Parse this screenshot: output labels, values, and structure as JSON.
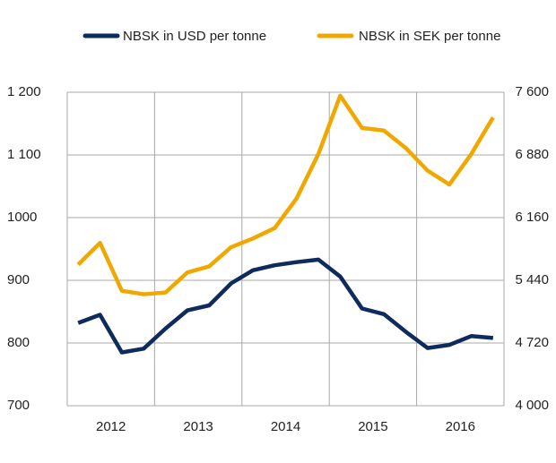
{
  "chart_data": {
    "type": "line",
    "x": [
      2012.125,
      2012.375,
      2012.625,
      2012.875,
      2013.125,
      2013.375,
      2013.625,
      2013.875,
      2014.125,
      2014.375,
      2014.625,
      2014.875,
      2015.125,
      2015.375,
      2015.625,
      2015.875,
      2016.125,
      2016.375,
      2016.625,
      2016.875
    ],
    "xlim": [
      2012,
      2017
    ],
    "xticks": [
      2012,
      2013,
      2014,
      2015,
      2016
    ],
    "series": [
      {
        "name": "NBSK in USD per tonne",
        "color": "#0f2a5c",
        "values": [
          832,
          845,
          785,
          791,
          823,
          852,
          860,
          895,
          916,
          924,
          929,
          933,
          906,
          855,
          846,
          818,
          792,
          797,
          811,
          808
        ]
      },
      {
        "name": "NBSK in SEK per tonne",
        "color": "#f0a800",
        "axis": "y2",
        "values": [
          5620,
          5870,
          5320,
          5280,
          5300,
          5530,
          5600,
          5820,
          5920,
          6040,
          6380,
          6890,
          7560,
          7190,
          7160,
          6960,
          6700,
          6540,
          6890,
          7310
        ]
      }
    ],
    "ylim": [
      700,
      1200
    ],
    "yticks": [
      700,
      800,
      900,
      1000,
      {
        "value": 1100,
        "label": "1 100"
      },
      {
        "value": 1200,
        "label": "1 200"
      }
    ],
    "y2lim": [
      4000,
      7600
    ],
    "y2ticks": [
      {
        "value": 4000,
        "label": "4 000"
      },
      {
        "value": 4720,
        "label": "4 720"
      },
      {
        "value": 5440,
        "label": "5 440"
      },
      {
        "value": 6160,
        "label": "6 160"
      },
      {
        "value": 6880,
        "label": "6 880"
      },
      {
        "value": 7600,
        "label": "7 600"
      }
    ],
    "grid": true
  }
}
